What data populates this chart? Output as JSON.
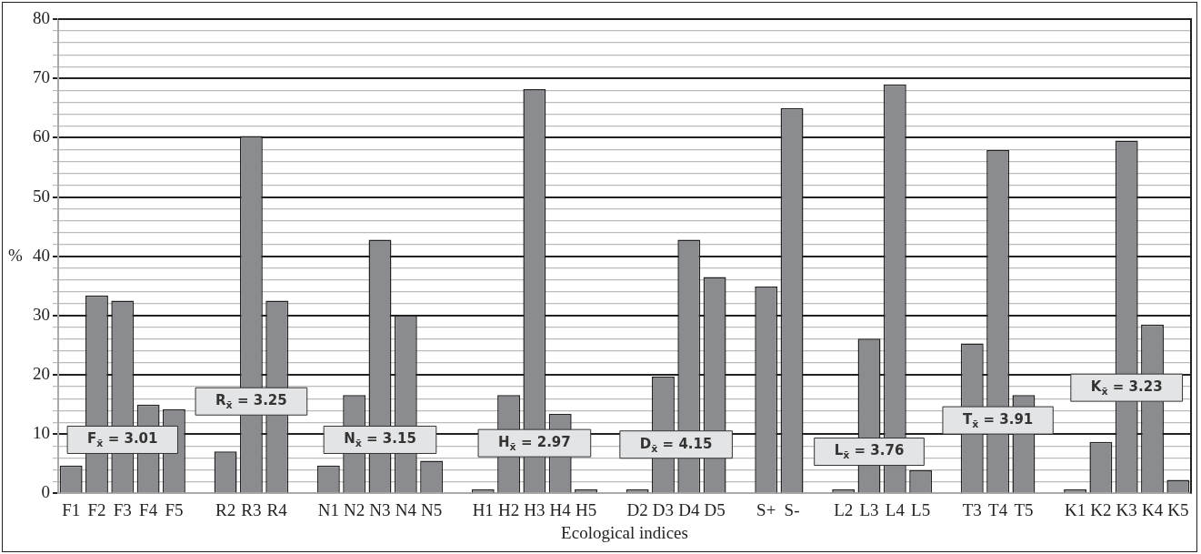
{
  "chart_data": {
    "type": "bar",
    "xlabel": "Ecological indices",
    "ylabel": "%",
    "categories": [
      "F1",
      "F2",
      "F3",
      "F4",
      "F5",
      null,
      "R2",
      "R3",
      "R4",
      null,
      "N1",
      "N2",
      "N3",
      "N4",
      "N5",
      null,
      "H1",
      "H2",
      "H3",
      "H4",
      "H5",
      null,
      "D2",
      "D3",
      "D4",
      "D5",
      null,
      "S+",
      "S-",
      null,
      "L2",
      "L3",
      "L4",
      "L5",
      null,
      "T3",
      "T4",
      "T5",
      null,
      "K1",
      "K2",
      "K3",
      "K4",
      "K5"
    ],
    "values": [
      4.7,
      33.4,
      32.5,
      15.0,
      14.2,
      null,
      7.1,
      60.3,
      32.5,
      null,
      4.7,
      16.6,
      42.8,
      30.0,
      5.5,
      null,
      0.7,
      16.6,
      68.2,
      13.4,
      0.7,
      null,
      0.7,
      19.7,
      42.8,
      36.5,
      null,
      34.9,
      65.0,
      null,
      0.7,
      26.1,
      69.0,
      3.9,
      null,
      25.3,
      57.9,
      16.6,
      null,
      0.7,
      8.7,
      59.5,
      28.5,
      2.3
    ],
    "color": "#8b8c90",
    "ylim": [
      0,
      80
    ],
    "yticks": [
      0,
      {
        "value": 2,
        "label": null
      },
      {
        "value": 4,
        "label": null
      },
      {
        "value": 6,
        "label": null
      },
      {
        "value": 8,
        "label": null
      },
      10,
      {
        "value": 12,
        "label": null
      },
      {
        "value": 14,
        "label": null
      },
      {
        "value": 16,
        "label": null
      },
      {
        "value": 18,
        "label": null
      },
      20,
      {
        "value": 22,
        "label": null
      },
      {
        "value": 24,
        "label": null
      },
      {
        "value": 26,
        "label": null
      },
      {
        "value": 28,
        "label": null
      },
      30,
      {
        "value": 32,
        "label": null
      },
      {
        "value": 34,
        "label": null
      },
      {
        "value": 36,
        "label": null
      },
      {
        "value": 38,
        "label": null
      },
      40,
      {
        "value": 42,
        "label": null
      },
      {
        "value": 44,
        "label": null
      },
      {
        "value": 46,
        "label": null
      },
      {
        "value": 48,
        "label": null
      },
      50,
      {
        "value": 52,
        "label": null
      },
      {
        "value": 54,
        "label": null
      },
      {
        "value": 56,
        "label": null
      },
      {
        "value": 58,
        "label": null
      },
      60,
      {
        "value": 62,
        "label": null
      },
      {
        "value": 64,
        "label": null
      },
      {
        "value": 66,
        "label": null
      },
      {
        "value": 68,
        "label": null
      },
      70,
      {
        "value": 72,
        "label": null
      },
      {
        "value": 74,
        "label": null
      },
      {
        "value": 76,
        "label": null
      },
      {
        "value": 78,
        "label": null
      },
      80
    ],
    "grid": "y",
    "annotations": [
      "F$_{x̄}$ = 3.01",
      "R$_{x̄}$ = 3.25",
      "N$_{x̄}$ = 3.15",
      "H$_{x̄}$ = 2.97",
      "D$_{x̄}$ = 4.15",
      "L$_{x̄}$ = 3.76",
      "T$_{x̄}$ = 3.91",
      "K$_{x̄}$ = 3.23"
    ]
  }
}
